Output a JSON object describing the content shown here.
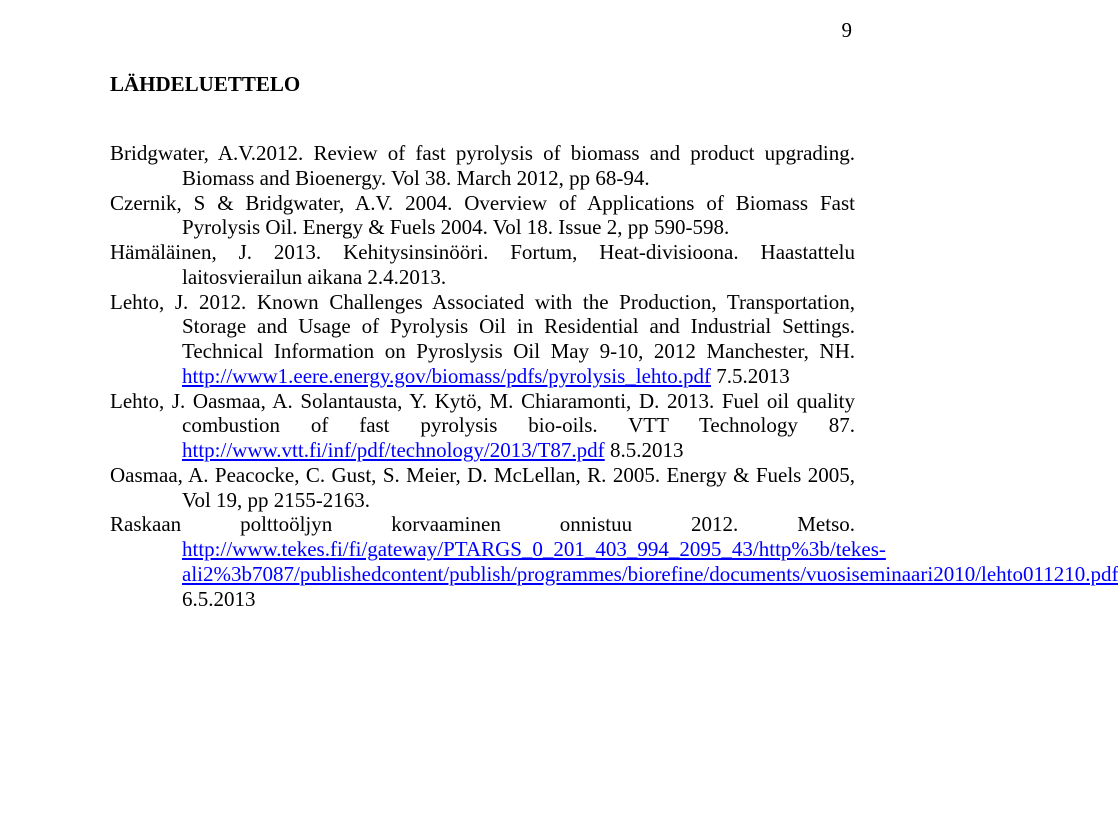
{
  "page_number": "9",
  "section_title": "LÄHDELUETTELO",
  "refs": {
    "r1": {
      "prefix": "Bridgwater, A.V.2012. Review of fast pyrolysis of biomass and product upgrading. Biomass and Bioenergy. Vol 38. March 2012, pp 68-94."
    },
    "r2": {
      "prefix": "Czernik, S & Bridgwater, A.V. 2004. Overview of Applications of Biomass Fast Pyrolysis Oil. Energy & Fuels 2004. Vol 18. Issue 2, pp 590-598."
    },
    "r3": {
      "prefix": "Hämäläinen, J. 2013. Kehitysinsinööri. Fortum, Heat-divisioona. Haastattelu laitosvierailun aikana 2.4.2013."
    },
    "r4": {
      "prefix": "Lehto, J. 2012. Known Challenges Associated with the Production, Transportation, Storage and Usage of Pyrolysis Oil in Residential and Industrial Settings. Technical Information on Pyroslysis Oil May 9-10, 2012 Manchester, NH. ",
      "link": "http://www1.eere.energy.gov/biomass/pdfs/pyrolysis_lehto.pdf",
      "suffix": " 7.5.2013"
    },
    "r5": {
      "prefix": "Lehto, J. Oasmaa, A. Solantausta, Y. Kytö, M. Chiaramonti, D. 2013. Fuel oil quality combustion of fast pyrolysis bio-oils. VTT Technology 87. ",
      "link": "http://www.vtt.fi/inf/pdf/technology/2013/T87.pdf",
      "suffix": " 8.5.2013"
    },
    "r6": {
      "prefix": "Oasmaa, A. Peacocke, C. Gust, S. Meier, D. McLellan, R. 2005. Energy & Fuels 2005, Vol 19, pp 2155-2163."
    },
    "r7": {
      "prefix": "Raskaan polttoöljyn korvaaminen onnistuu 2012. Metso. ",
      "link": "http://www.tekes.fi/fi/gateway/PTARGS_0_201_403_994_2095_43/http%3b/tekes-ali2%3b7087/publishedcontent/publish/programmes/biorefine/documents/vuosiseminaari2010/lehto011210.pdf",
      "suffix": " 6.5.2013"
    }
  }
}
